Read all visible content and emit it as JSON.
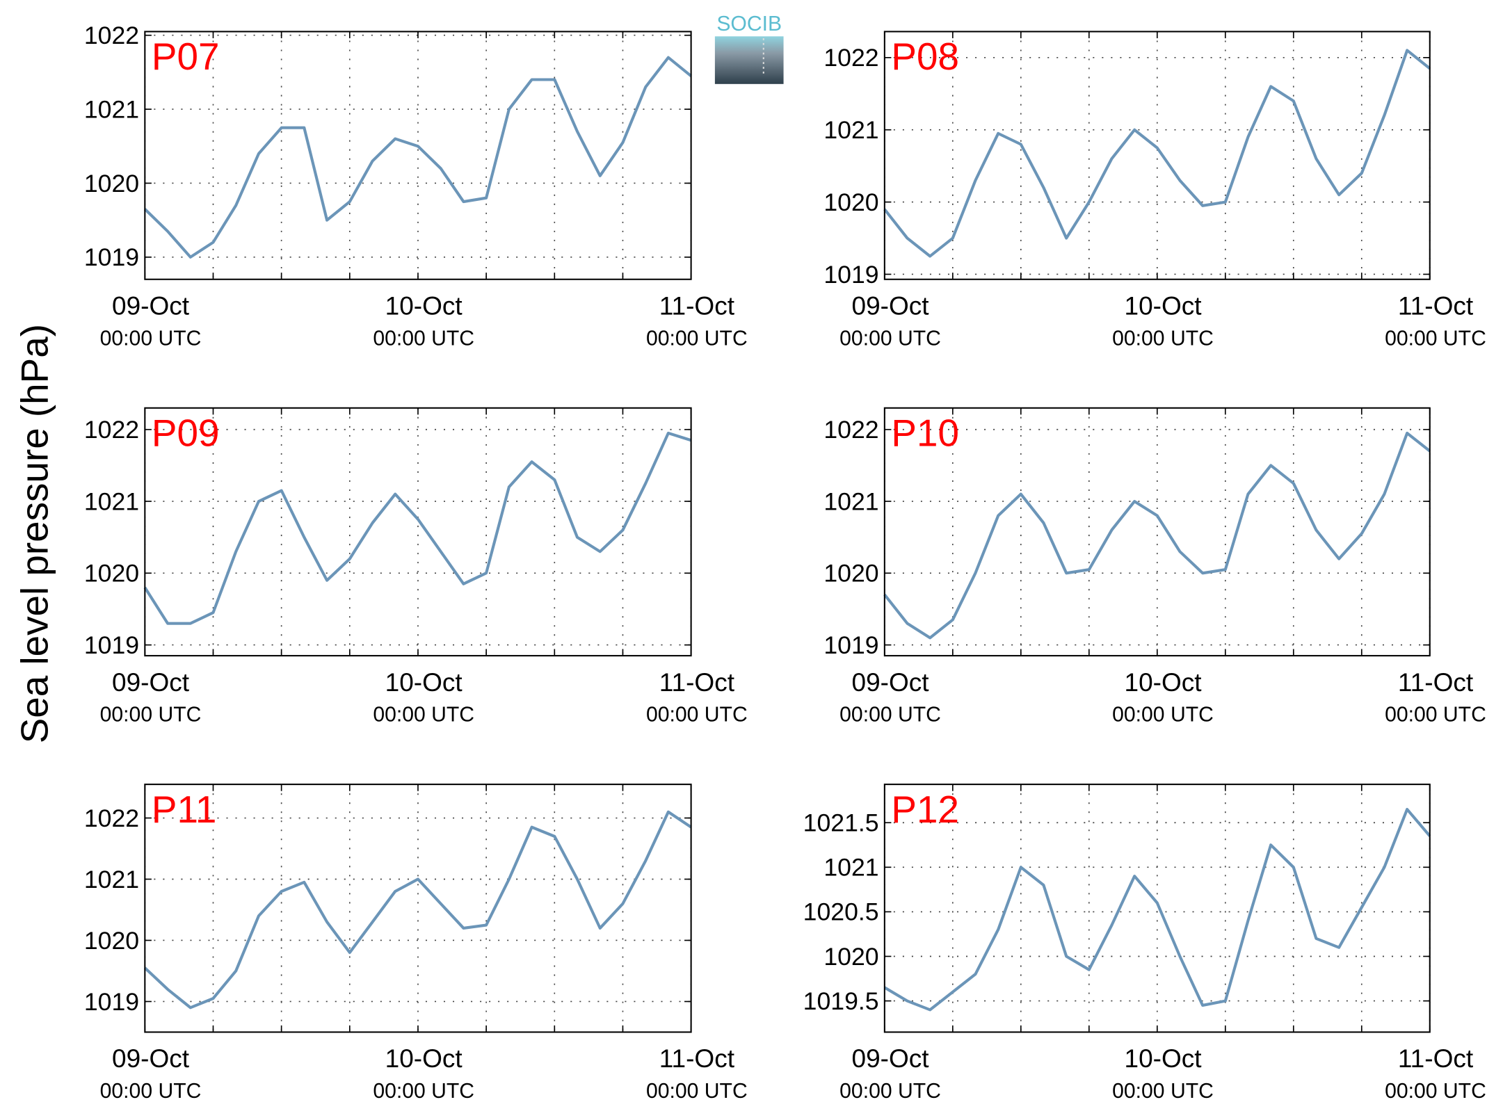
{
  "ylabel": "Sea level pressure (hPa)",
  "logo": "SOCIB",
  "chart_data": [
    {
      "type": "line",
      "title": "P07",
      "x": [
        "09-Oct 00:00",
        "09-Oct 02:00",
        "09-Oct 04:00",
        "09-Oct 06:00",
        "09-Oct 08:00",
        "09-Oct 10:00",
        "09-Oct 12:00",
        "09-Oct 14:00",
        "09-Oct 16:00",
        "09-Oct 18:00",
        "09-Oct 20:00",
        "09-Oct 22:00",
        "10-Oct 00:00",
        "10-Oct 02:00",
        "10-Oct 04:00",
        "10-Oct 06:00",
        "10-Oct 08:00",
        "10-Oct 10:00",
        "10-Oct 12:00",
        "10-Oct 14:00",
        "10-Oct 16:00",
        "10-Oct 18:00",
        "10-Oct 20:00",
        "10-Oct 22:00",
        "11-Oct 00:00"
      ],
      "series": [
        {
          "color": "#6b95b8",
          "values": [
            1019.65,
            1019.35,
            1019.0,
            1019.2,
            1019.7,
            1020.4,
            1020.75,
            1020.75,
            1019.5,
            1019.75,
            1020.3,
            1020.6,
            1020.5,
            1020.2,
            1019.75,
            1019.8,
            1021.0,
            1021.4,
            1021.4,
            1020.7,
            1020.1,
            1020.55,
            1021.3,
            1021.7,
            1021.45
          ]
        }
      ],
      "xlim": [
        "09-Oct 00:00",
        "11-Oct 00:00"
      ],
      "xticks": [
        {
          "value": "09-Oct 00:00",
          "label": [
            "09-Oct",
            "00:00 UTC"
          ]
        },
        {
          "value": "09-Oct 06:00",
          "label": null
        },
        {
          "value": "09-Oct 12:00",
          "label": null
        },
        {
          "value": "09-Oct 18:00",
          "label": null
        },
        {
          "value": "10-Oct 00:00",
          "label": [
            "10-Oct",
            "00:00 UTC"
          ]
        },
        {
          "value": "10-Oct 06:00",
          "label": null
        },
        {
          "value": "10-Oct 12:00",
          "label": null
        },
        {
          "value": "10-Oct 18:00",
          "label": null
        },
        {
          "value": "11-Oct 00:00",
          "label": [
            "11-Oct",
            "00:00 UTC"
          ]
        }
      ],
      "ylim": [
        1018.7,
        1022.05
      ],
      "yticks": [
        1019,
        1020,
        1021,
        1022
      ],
      "grid": true
    },
    {
      "type": "line",
      "title": "P08",
      "x": [
        "09-Oct 00:00",
        "09-Oct 02:00",
        "09-Oct 04:00",
        "09-Oct 06:00",
        "09-Oct 08:00",
        "09-Oct 10:00",
        "09-Oct 12:00",
        "09-Oct 14:00",
        "09-Oct 16:00",
        "09-Oct 18:00",
        "09-Oct 20:00",
        "09-Oct 22:00",
        "10-Oct 00:00",
        "10-Oct 02:00",
        "10-Oct 04:00",
        "10-Oct 06:00",
        "10-Oct 08:00",
        "10-Oct 10:00",
        "10-Oct 12:00",
        "10-Oct 14:00",
        "10-Oct 16:00",
        "10-Oct 18:00",
        "10-Oct 20:00",
        "10-Oct 22:00",
        "11-Oct 00:00"
      ],
      "series": [
        {
          "color": "#6b95b8",
          "values": [
            1019.9,
            1019.5,
            1019.25,
            1019.5,
            1020.3,
            1020.95,
            1020.8,
            1020.2,
            1019.5,
            1020.0,
            1020.6,
            1021.0,
            1020.75,
            1020.3,
            1019.95,
            1020.0,
            1020.9,
            1021.6,
            1021.4,
            1020.6,
            1020.1,
            1020.4,
            1021.2,
            1022.1,
            1021.85
          ]
        }
      ],
      "xlim": [
        "09-Oct 00:00",
        "11-Oct 00:00"
      ],
      "xticks": [
        {
          "value": "09-Oct 00:00",
          "label": [
            "09-Oct",
            "00:00 UTC"
          ]
        },
        {
          "value": "09-Oct 06:00",
          "label": null
        },
        {
          "value": "09-Oct 12:00",
          "label": null
        },
        {
          "value": "09-Oct 18:00",
          "label": null
        },
        {
          "value": "10-Oct 00:00",
          "label": [
            "10-Oct",
            "00:00 UTC"
          ]
        },
        {
          "value": "10-Oct 06:00",
          "label": null
        },
        {
          "value": "10-Oct 12:00",
          "label": null
        },
        {
          "value": "10-Oct 18:00",
          "label": null
        },
        {
          "value": "11-Oct 00:00",
          "label": [
            "11-Oct",
            "00:00 UTC"
          ]
        }
      ],
      "ylim": [
        1018.93,
        1022.36
      ],
      "yticks": [
        1019,
        1020,
        1021,
        1022
      ],
      "grid": true
    },
    {
      "type": "line",
      "title": "P09",
      "x": [
        "09-Oct 00:00",
        "09-Oct 02:00",
        "09-Oct 04:00",
        "09-Oct 06:00",
        "09-Oct 08:00",
        "09-Oct 10:00",
        "09-Oct 12:00",
        "09-Oct 14:00",
        "09-Oct 16:00",
        "09-Oct 18:00",
        "09-Oct 20:00",
        "09-Oct 22:00",
        "10-Oct 00:00",
        "10-Oct 02:00",
        "10-Oct 04:00",
        "10-Oct 06:00",
        "10-Oct 08:00",
        "10-Oct 10:00",
        "10-Oct 12:00",
        "10-Oct 14:00",
        "10-Oct 16:00",
        "10-Oct 18:00",
        "10-Oct 20:00",
        "10-Oct 22:00",
        "11-Oct 00:00"
      ],
      "series": [
        {
          "color": "#6b95b8",
          "values": [
            1019.8,
            1019.3,
            1019.3,
            1019.45,
            1020.3,
            1021.0,
            1021.15,
            1020.5,
            1019.9,
            1020.2,
            1020.7,
            1021.1,
            1020.75,
            1020.3,
            1019.85,
            1020.0,
            1021.2,
            1021.55,
            1021.3,
            1020.5,
            1020.3,
            1020.6,
            1021.25,
            1021.95,
            1021.85
          ]
        }
      ],
      "xlim": [
        "09-Oct 00:00",
        "11-Oct 00:00"
      ],
      "xticks": [
        {
          "value": "09-Oct 00:00",
          "label": [
            "09-Oct",
            "00:00 UTC"
          ]
        },
        {
          "value": "09-Oct 06:00",
          "label": null
        },
        {
          "value": "09-Oct 12:00",
          "label": null
        },
        {
          "value": "09-Oct 18:00",
          "label": null
        },
        {
          "value": "10-Oct 00:00",
          "label": [
            "10-Oct",
            "00:00 UTC"
          ]
        },
        {
          "value": "10-Oct 06:00",
          "label": null
        },
        {
          "value": "10-Oct 12:00",
          "label": null
        },
        {
          "value": "10-Oct 18:00",
          "label": null
        },
        {
          "value": "11-Oct 00:00",
          "label": [
            "11-Oct",
            "00:00 UTC"
          ]
        }
      ],
      "ylim": [
        1018.85,
        1022.3
      ],
      "yticks": [
        1019,
        1020,
        1021,
        1022
      ],
      "grid": true
    },
    {
      "type": "line",
      "title": "P10",
      "x": [
        "09-Oct 00:00",
        "09-Oct 02:00",
        "09-Oct 04:00",
        "09-Oct 06:00",
        "09-Oct 08:00",
        "09-Oct 10:00",
        "09-Oct 12:00",
        "09-Oct 14:00",
        "09-Oct 16:00",
        "09-Oct 18:00",
        "09-Oct 20:00",
        "09-Oct 22:00",
        "10-Oct 00:00",
        "10-Oct 02:00",
        "10-Oct 04:00",
        "10-Oct 06:00",
        "10-Oct 08:00",
        "10-Oct 10:00",
        "10-Oct 12:00",
        "10-Oct 14:00",
        "10-Oct 16:00",
        "10-Oct 18:00",
        "10-Oct 20:00",
        "10-Oct 22:00",
        "11-Oct 00:00"
      ],
      "series": [
        {
          "color": "#6b95b8",
          "values": [
            1019.7,
            1019.3,
            1019.1,
            1019.35,
            1020.0,
            1020.8,
            1021.1,
            1020.7,
            1020.0,
            1020.05,
            1020.6,
            1021.0,
            1020.8,
            1020.3,
            1020.0,
            1020.05,
            1021.1,
            1021.5,
            1021.25,
            1020.6,
            1020.2,
            1020.55,
            1021.1,
            1021.95,
            1021.7
          ]
        }
      ],
      "xlim": [
        "09-Oct 00:00",
        "11-Oct 00:00"
      ],
      "xticks": [
        {
          "value": "09-Oct 00:00",
          "label": [
            "09-Oct",
            "00:00 UTC"
          ]
        },
        {
          "value": "09-Oct 06:00",
          "label": null
        },
        {
          "value": "09-Oct 12:00",
          "label": null
        },
        {
          "value": "09-Oct 18:00",
          "label": null
        },
        {
          "value": "10-Oct 00:00",
          "label": [
            "10-Oct",
            "00:00 UTC"
          ]
        },
        {
          "value": "10-Oct 06:00",
          "label": null
        },
        {
          "value": "10-Oct 12:00",
          "label": null
        },
        {
          "value": "10-Oct 18:00",
          "label": null
        },
        {
          "value": "11-Oct 00:00",
          "label": [
            "11-Oct",
            "00:00 UTC"
          ]
        }
      ],
      "ylim": [
        1018.85,
        1022.3
      ],
      "yticks": [
        1019,
        1020,
        1021,
        1022
      ],
      "grid": true
    },
    {
      "type": "line",
      "title": "P11",
      "x": [
        "09-Oct 00:00",
        "09-Oct 02:00",
        "09-Oct 04:00",
        "09-Oct 06:00",
        "09-Oct 08:00",
        "09-Oct 10:00",
        "09-Oct 12:00",
        "09-Oct 14:00",
        "09-Oct 16:00",
        "09-Oct 18:00",
        "09-Oct 20:00",
        "09-Oct 22:00",
        "10-Oct 00:00",
        "10-Oct 02:00",
        "10-Oct 04:00",
        "10-Oct 06:00",
        "10-Oct 08:00",
        "10-Oct 10:00",
        "10-Oct 12:00",
        "10-Oct 14:00",
        "10-Oct 16:00",
        "10-Oct 18:00",
        "10-Oct 20:00",
        "10-Oct 22:00",
        "11-Oct 00:00"
      ],
      "series": [
        {
          "color": "#6b95b8",
          "values": [
            1019.55,
            1019.2,
            1018.9,
            1019.05,
            1019.5,
            1020.4,
            1020.8,
            1020.95,
            1020.3,
            1019.8,
            1020.3,
            1020.8,
            1021.0,
            1020.6,
            1020.2,
            1020.25,
            1021.0,
            1021.85,
            1021.7,
            1021.0,
            1020.2,
            1020.6,
            1021.3,
            1022.1,
            1021.85
          ]
        }
      ],
      "xlim": [
        "09-Oct 00:00",
        "11-Oct 00:00"
      ],
      "xticks": [
        {
          "value": "09-Oct 00:00",
          "label": [
            "09-Oct",
            "00:00 UTC"
          ]
        },
        {
          "value": "09-Oct 06:00",
          "label": null
        },
        {
          "value": "09-Oct 12:00",
          "label": null
        },
        {
          "value": "09-Oct 18:00",
          "label": null
        },
        {
          "value": "10-Oct 00:00",
          "label": [
            "10-Oct",
            "00:00 UTC"
          ]
        },
        {
          "value": "10-Oct 06:00",
          "label": null
        },
        {
          "value": "10-Oct 12:00",
          "label": null
        },
        {
          "value": "10-Oct 18:00",
          "label": null
        },
        {
          "value": "11-Oct 00:00",
          "label": [
            "11-Oct",
            "00:00 UTC"
          ]
        }
      ],
      "ylim": [
        1018.5,
        1022.55
      ],
      "yticks": [
        1019,
        1020,
        1021,
        1022
      ],
      "grid": true
    },
    {
      "type": "line",
      "title": "P12",
      "x": [
        "09-Oct 00:00",
        "09-Oct 02:00",
        "09-Oct 04:00",
        "09-Oct 06:00",
        "09-Oct 08:00",
        "09-Oct 10:00",
        "09-Oct 12:00",
        "09-Oct 14:00",
        "09-Oct 16:00",
        "09-Oct 18:00",
        "09-Oct 20:00",
        "09-Oct 22:00",
        "10-Oct 00:00",
        "10-Oct 02:00",
        "10-Oct 04:00",
        "10-Oct 06:00",
        "10-Oct 08:00",
        "10-Oct 10:00",
        "10-Oct 12:00",
        "10-Oct 14:00",
        "10-Oct 16:00",
        "10-Oct 18:00",
        "10-Oct 20:00",
        "10-Oct 22:00",
        "11-Oct 00:00"
      ],
      "series": [
        {
          "color": "#6b95b8",
          "values": [
            1019.65,
            1019.5,
            1019.4,
            1019.6,
            1019.8,
            1020.3,
            1021.0,
            1020.8,
            1020.0,
            1019.85,
            1020.35,
            1020.9,
            1020.6,
            1020.0,
            1019.45,
            1019.5,
            1020.4,
            1021.25,
            1021.0,
            1020.2,
            1020.1,
            1020.55,
            1021.0,
            1021.65,
            1021.35
          ]
        }
      ],
      "xlim": [
        "09-Oct 00:00",
        "11-Oct 00:00"
      ],
      "xticks": [
        {
          "value": "09-Oct 00:00",
          "label": [
            "09-Oct",
            "00:00 UTC"
          ]
        },
        {
          "value": "09-Oct 06:00",
          "label": null
        },
        {
          "value": "09-Oct 12:00",
          "label": null
        },
        {
          "value": "09-Oct 18:00",
          "label": null
        },
        {
          "value": "10-Oct 00:00",
          "label": [
            "10-Oct",
            "00:00 UTC"
          ]
        },
        {
          "value": "10-Oct 06:00",
          "label": null
        },
        {
          "value": "10-Oct 12:00",
          "label": null
        },
        {
          "value": "10-Oct 18:00",
          "label": null
        },
        {
          "value": "11-Oct 00:00",
          "label": [
            "11-Oct",
            "00:00 UTC"
          ]
        }
      ],
      "ylim": [
        1019.15,
        1021.93
      ],
      "yticks": [
        1019.5,
        1020,
        1020.5,
        1021,
        1021.5
      ],
      "grid": true
    }
  ]
}
